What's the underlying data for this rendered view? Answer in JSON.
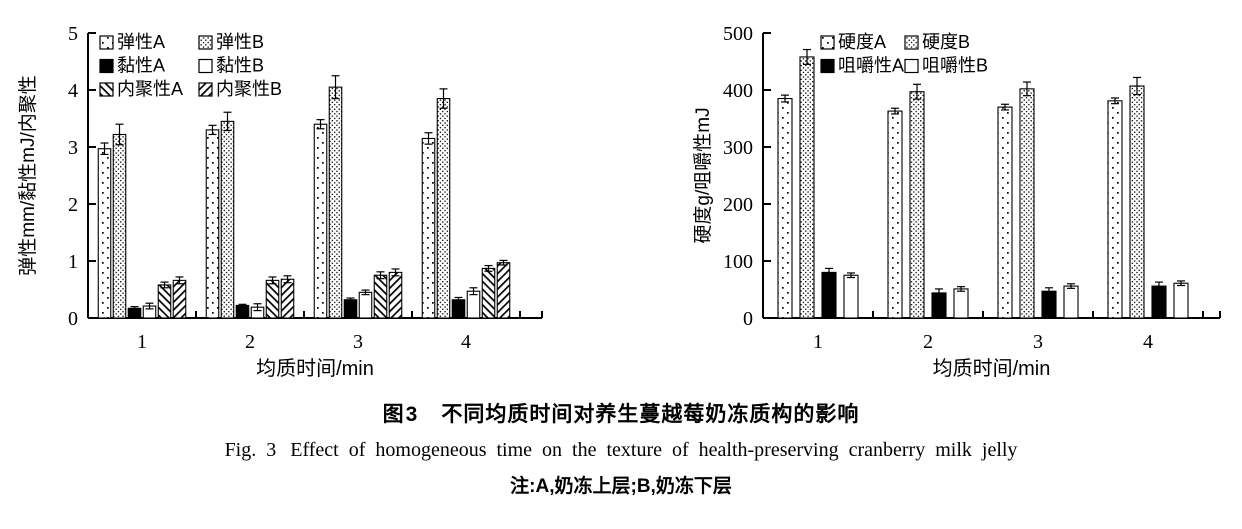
{
  "colors": {
    "foreground": "#000000",
    "background": "#ffffff"
  },
  "captions": {
    "zh": {
      "label": "图3",
      "text": "不同均质时间对养生蔓越莓奶冻质构的影响"
    },
    "en": {
      "label": "Fig. 3",
      "text": "Effect of homogeneous time on the texture of health-preserving cranberry milk jelly"
    },
    "note": "注:A,奶冻上层;B,奶冻下层"
  },
  "chart_data": [
    {
      "type": "bar",
      "title": "",
      "xlabel": "均质时间/min",
      "ylabel": "弹性mm/黏性mJ/内聚性",
      "categories": [
        "1",
        "2",
        "3",
        "4"
      ],
      "ylim": [
        0,
        5
      ],
      "yticks": [
        0,
        1,
        2,
        3,
        4,
        5
      ],
      "grid": false,
      "legend_position": "top-left-inside",
      "series": [
        {
          "name": "弹性A",
          "pattern": "dots-sparse",
          "values": [
            2.97,
            3.3,
            3.4,
            3.15
          ],
          "errors": [
            0.1,
            0.08,
            0.08,
            0.1
          ]
        },
        {
          "name": "弹性B",
          "pattern": "dots-dense",
          "values": [
            3.22,
            3.45,
            4.05,
            3.85
          ],
          "errors": [
            0.18,
            0.16,
            0.2,
            0.17
          ]
        },
        {
          "name": "黏性A",
          "pattern": "solid-black",
          "values": [
            0.17,
            0.22,
            0.32,
            0.32
          ],
          "errors": [
            0.03,
            0.02,
            0.03,
            0.04
          ]
        },
        {
          "name": "黏性B",
          "pattern": "solid-white",
          "values": [
            0.21,
            0.19,
            0.45,
            0.47
          ],
          "errors": [
            0.05,
            0.06,
            0.04,
            0.06
          ]
        },
        {
          "name": "内聚性A",
          "pattern": "hatch-backslash",
          "values": [
            0.58,
            0.66,
            0.75,
            0.87
          ],
          "errors": [
            0.05,
            0.06,
            0.06,
            0.05
          ]
        },
        {
          "name": "内聚性B",
          "pattern": "hatch-slash",
          "values": [
            0.66,
            0.68,
            0.8,
            0.97
          ],
          "errors": [
            0.06,
            0.06,
            0.06,
            0.04
          ]
        }
      ]
    },
    {
      "type": "bar",
      "title": "",
      "xlabel": "均质时间/min",
      "ylabel": "硬度g/咀嚼性mJ",
      "categories": [
        "1",
        "2",
        "3",
        "4"
      ],
      "ylim": [
        0,
        500
      ],
      "yticks": [
        0,
        100,
        200,
        300,
        400,
        500
      ],
      "grid": false,
      "legend_position": "top-left-inside",
      "series": [
        {
          "name": "硬度A",
          "pattern": "dots-sparse",
          "values": [
            385,
            363,
            370,
            381
          ],
          "errors": [
            6,
            5,
            5,
            5
          ]
        },
        {
          "name": "硬度B",
          "pattern": "dots-dense",
          "values": [
            458,
            397,
            402,
            407
          ],
          "errors": [
            13,
            13,
            12,
            15
          ]
        },
        {
          "name": "咀嚼性A",
          "pattern": "solid-black",
          "values": [
            80,
            44,
            47,
            56
          ],
          "errors": [
            7,
            7,
            6,
            7
          ]
        },
        {
          "name": "咀嚼性B",
          "pattern": "solid-white",
          "values": [
            75,
            51,
            56,
            61
          ],
          "errors": [
            4,
            4,
            4,
            4
          ]
        }
      ]
    }
  ]
}
